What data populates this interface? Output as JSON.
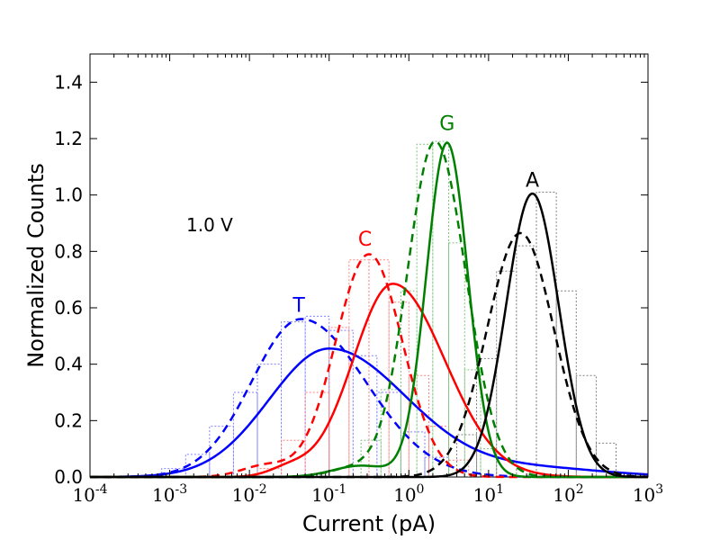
{
  "chart_data": {
    "type": "line",
    "xscale": "log",
    "xlim": [
      0.0001,
      1000
    ],
    "ylim": [
      0.0,
      1.5
    ],
    "xlabel": "Current (pA)",
    "ylabel": "Normalized Counts",
    "annotation": "1.0 V",
    "xticks": [
      {
        "exp": -4,
        "label": "10",
        "sup": "-4"
      },
      {
        "exp": -3,
        "label": "10",
        "sup": "-3"
      },
      {
        "exp": -2,
        "label": "10",
        "sup": "-2"
      },
      {
        "exp": -1,
        "label": "10",
        "sup": "-1"
      },
      {
        "exp": 0,
        "label": "10",
        "sup": "0"
      },
      {
        "exp": 1,
        "label": "10",
        "sup": "1"
      },
      {
        "exp": 2,
        "label": "10",
        "sup": "2"
      },
      {
        "exp": 3,
        "label": "10",
        "sup": "3"
      }
    ],
    "yticks": [
      "0.0",
      "0.2",
      "0.4",
      "0.6",
      "0.8",
      "1.0",
      "1.2",
      "1.4"
    ],
    "series": [
      {
        "name": "T",
        "color": "#0000ff",
        "peak_label_at": [
          -1.38,
          0.585
        ],
        "dashed": {
          "mu": -1.35,
          "sigma": 0.62,
          "amp": 0.56,
          "skew": 0.3
        },
        "solid": {
          "mu": -1.0,
          "sigma": 0.75,
          "amp": 0.455,
          "skew": 0.3,
          "tail": {
            "mu": 1.6,
            "sigma": 0.9,
            "amp": 0.03
          }
        }
      },
      {
        "name": "C",
        "color": "#ff0000",
        "peak_label_at": [
          -0.55,
          0.82
        ],
        "dashed": {
          "mu": -0.5,
          "sigma": 0.42,
          "amp": 0.79,
          "skew": 0.0,
          "shoulder": {
            "mu": -1.8,
            "sigma": 0.3,
            "amp": 0.04
          }
        },
        "solid": {
          "mu": -0.2,
          "sigma": 0.5,
          "amp": 0.685,
          "skew": 0.3,
          "shoulder": {
            "mu": -1.5,
            "sigma": 0.25,
            "amp": 0.03
          }
        }
      },
      {
        "name": "G",
        "color": "#008000",
        "peak_label_at": [
          0.48,
          1.23
        ],
        "dashed": {
          "mu": 0.33,
          "sigma": 0.35,
          "amp": 1.19,
          "skew": 0.1,
          "shoulder": {
            "mu": -0.7,
            "sigma": 0.3,
            "amp": 0.03
          }
        },
        "solid": {
          "mu": 0.48,
          "sigma": 0.26,
          "amp": 1.185,
          "skew": 0.0,
          "shoulder": {
            "mu": -0.6,
            "sigma": 0.35,
            "amp": 0.04
          }
        }
      },
      {
        "name": "A",
        "color": "#000000",
        "peak_label_at": [
          1.55,
          1.03
        ],
        "dashed": {
          "mu": 1.4,
          "sigma": 0.42,
          "amp": 0.865,
          "skew": 0.0
        },
        "solid": {
          "mu": 1.55,
          "sigma": 0.33,
          "amp": 1.005,
          "skew": 0.0
        }
      }
    ],
    "histograms": [
      {
        "name": "T-hist",
        "color": "#8080ff",
        "edges": [
          -3.1,
          -2.8,
          -2.5,
          -2.2,
          -1.9,
          -1.6,
          -1.3,
          -1.0,
          -0.7,
          -0.4,
          -0.1,
          0.2,
          0.5
        ],
        "counts": [
          0.03,
          0.08,
          0.18,
          0.3,
          0.4,
          0.55,
          0.57,
          0.52,
          0.43,
          0.3,
          0.16,
          0.07
        ]
      },
      {
        "name": "C-hist",
        "color": "#ff8080",
        "edges": [
          -1.9,
          -1.6,
          -1.3,
          -1.0,
          -0.75,
          -0.5,
          -0.25,
          0.0,
          0.25,
          0.5,
          0.75
        ],
        "counts": [
          0.03,
          0.13,
          0.3,
          0.53,
          0.77,
          0.77,
          0.62,
          0.36,
          0.18,
          0.06
        ]
      },
      {
        "name": "G-hist",
        "color": "#80c080",
        "edges": [
          -0.6,
          -0.35,
          -0.1,
          0.1,
          0.3,
          0.5,
          0.7,
          0.9,
          1.1
        ],
        "counts": [
          0.13,
          0.31,
          0.66,
          1.18,
          1.19,
          0.83,
          0.38,
          0.1
        ]
      },
      {
        "name": "A-hist",
        "color": "#808080",
        "edges": [
          0.6,
          0.85,
          1.1,
          1.35,
          1.6,
          1.85,
          2.1,
          2.35,
          2.6
        ],
        "counts": [
          0.15,
          0.42,
          0.73,
          0.82,
          1.01,
          0.66,
          0.36,
          0.12
        ]
      }
    ]
  }
}
